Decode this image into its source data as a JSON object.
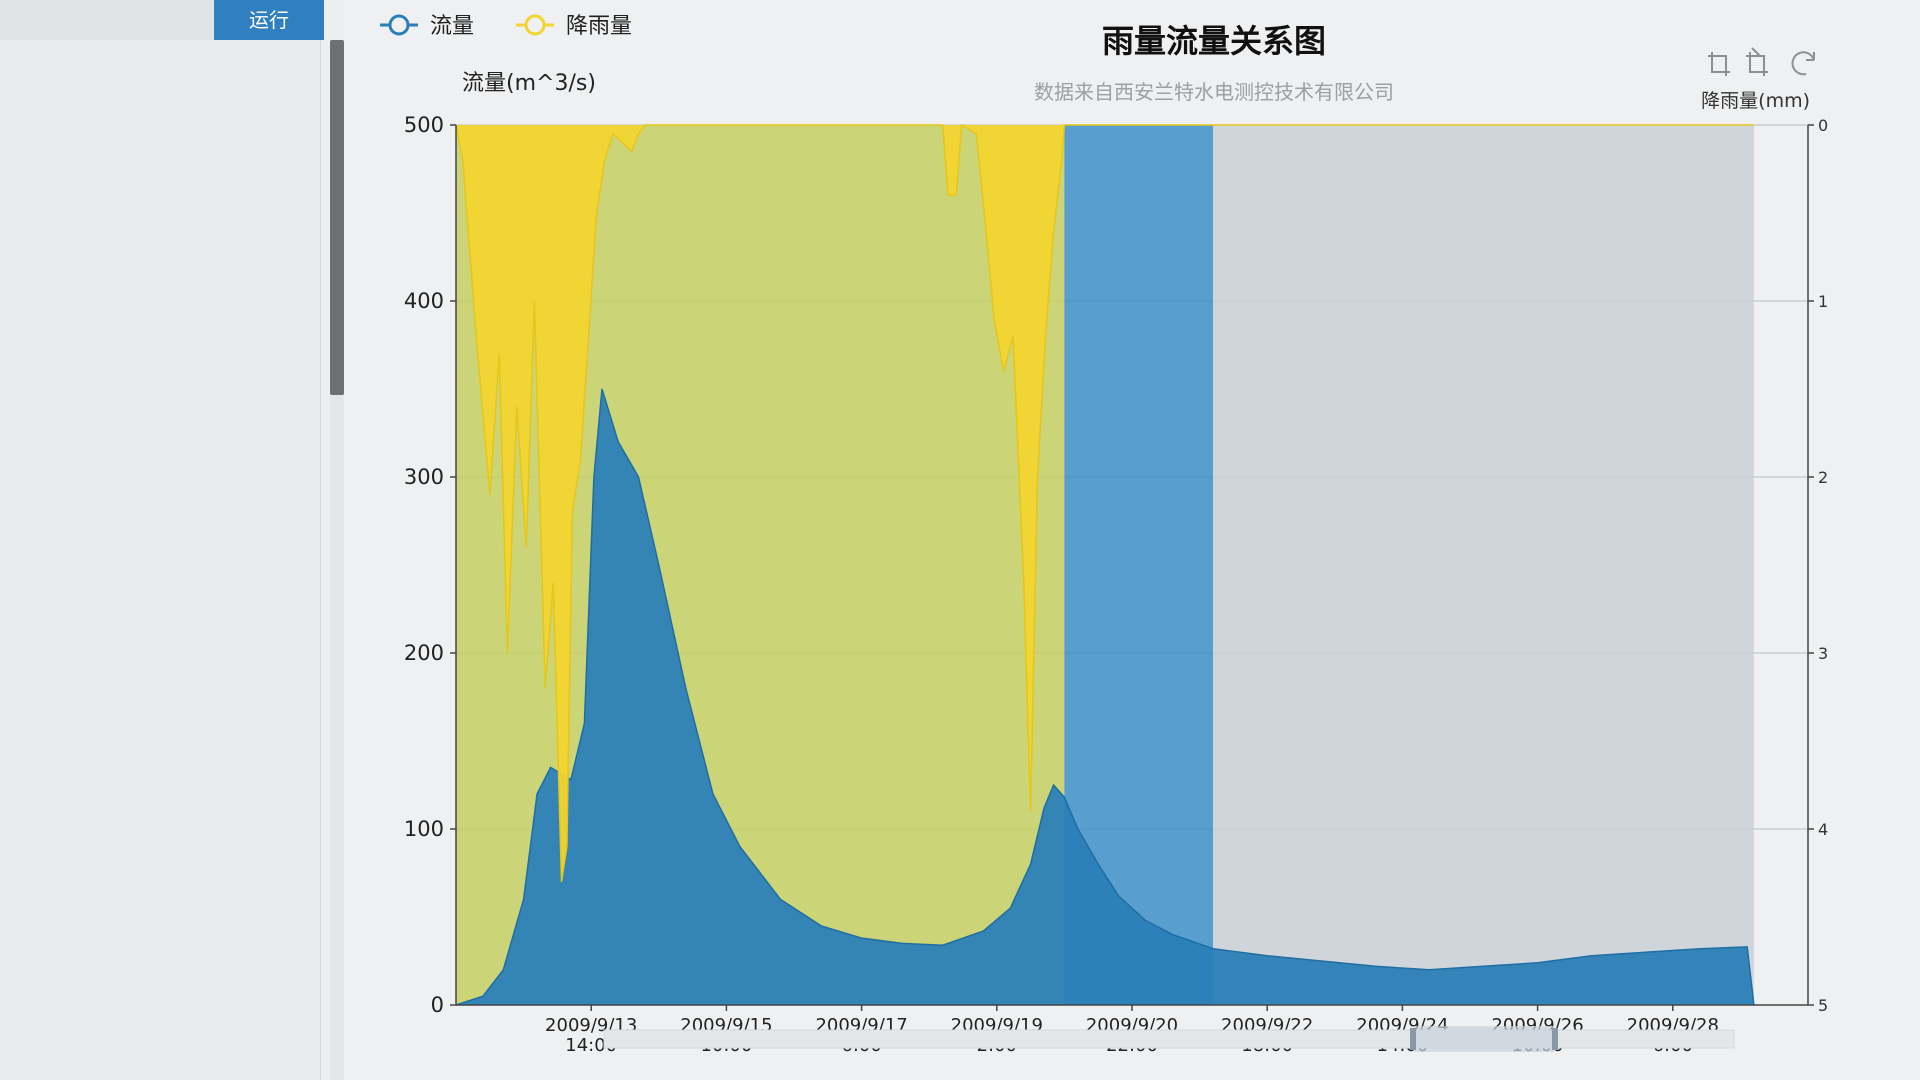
{
  "sidebar": {
    "run_button_label": "运行"
  },
  "toolbar": {
    "icons": [
      "zoom-icon",
      "zoom-reset-icon",
      "restore-icon"
    ]
  },
  "colors": {
    "flow": "#2b7fb8",
    "rain": "#f2d530",
    "mark_yellow": "#c4cf60",
    "mark_blue": "#3d8fc8",
    "mark_grey": "#c9d0d6"
  },
  "chart_data": {
    "type": "area",
    "title": "雨量流量关系图",
    "subtitle": "数据来自西安兰特水电测控技术有限公司",
    "legend": [
      {
        "label": "流量",
        "color": "#2b7fb8"
      },
      {
        "label": "降雨量",
        "color": "#f2d530"
      }
    ],
    "legend_position": "top-left",
    "y_left": {
      "label": "流量(m^3/s)",
      "ticks": [
        0,
        100,
        200,
        300,
        400,
        500
      ],
      "range": [
        0,
        500
      ]
    },
    "y_right": {
      "label": "降雨量(mm)",
      "ticks": [
        0,
        1,
        2,
        3,
        4,
        5
      ],
      "range": [
        0,
        5
      ],
      "inverse": true
    },
    "x_ticks": [
      {
        "date": "2009/9/13",
        "time": "14:00"
      },
      {
        "date": "2009/9/15",
        "time": "10:00"
      },
      {
        "date": "2009/9/17",
        "time": "6:00"
      },
      {
        "date": "2009/9/19",
        "time": "2:00"
      },
      {
        "date": "2009/9/20",
        "time": "22:00"
      },
      {
        "date": "2009/9/22",
        "time": "18:00"
      },
      {
        "date": "2009/9/24",
        "time": "14:00"
      },
      {
        "date": "2009/9/26",
        "time": "10:00"
      },
      {
        "date": "2009/9/28",
        "time": "6:00"
      }
    ],
    "x_range": [
      0,
      10
    ],
    "grid": true,
    "series": [
      {
        "name": "流量",
        "axis": "left",
        "points": [
          [
            0,
            0
          ],
          [
            0.2,
            5
          ],
          [
            0.35,
            20
          ],
          [
            0.5,
            60
          ],
          [
            0.6,
            120
          ],
          [
            0.7,
            135
          ],
          [
            0.85,
            128
          ],
          [
            0.95,
            160
          ],
          [
            1.02,
            300
          ],
          [
            1.08,
            350
          ],
          [
            1.12,
            340
          ],
          [
            1.2,
            320
          ],
          [
            1.35,
            300
          ],
          [
            1.5,
            250
          ],
          [
            1.7,
            180
          ],
          [
            1.9,
            120
          ],
          [
            2.1,
            90
          ],
          [
            2.4,
            60
          ],
          [
            2.7,
            45
          ],
          [
            3.0,
            38
          ],
          [
            3.3,
            35
          ],
          [
            3.6,
            34
          ],
          [
            3.9,
            42
          ],
          [
            4.1,
            55
          ],
          [
            4.25,
            80
          ],
          [
            4.35,
            112
          ],
          [
            4.42,
            125
          ],
          [
            4.5,
            118
          ],
          [
            4.6,
            100
          ],
          [
            4.75,
            80
          ],
          [
            4.9,
            62
          ],
          [
            5.1,
            48
          ],
          [
            5.3,
            40
          ],
          [
            5.6,
            32
          ],
          [
            6.0,
            28
          ],
          [
            6.4,
            25
          ],
          [
            6.8,
            22
          ],
          [
            7.2,
            20
          ],
          [
            7.6,
            22
          ],
          [
            8.0,
            24
          ],
          [
            8.4,
            28
          ],
          [
            8.8,
            30
          ],
          [
            9.2,
            32
          ],
          [
            9.55,
            33
          ],
          [
            9.6,
            0
          ]
        ]
      },
      {
        "name": "降雨量",
        "axis": "right",
        "points": [
          [
            0,
            0
          ],
          [
            0.05,
            0.2
          ],
          [
            0.15,
            1.2
          ],
          [
            0.25,
            2.1
          ],
          [
            0.32,
            1.3
          ],
          [
            0.38,
            3.0
          ],
          [
            0.45,
            1.6
          ],
          [
            0.52,
            2.4
          ],
          [
            0.58,
            1.0
          ],
          [
            0.66,
            3.2
          ],
          [
            0.72,
            2.6
          ],
          [
            0.78,
            4.3
          ],
          [
            0.82,
            4.1
          ],
          [
            0.86,
            2.2
          ],
          [
            0.92,
            1.9
          ],
          [
            0.98,
            1.2
          ],
          [
            1.04,
            0.5
          ],
          [
            1.1,
            0.2
          ],
          [
            1.16,
            0.05
          ],
          [
            1.3,
            0.15
          ],
          [
            1.35,
            0.05
          ],
          [
            1.4,
            0
          ],
          [
            3.6,
            0
          ],
          [
            3.64,
            0.4
          ],
          [
            3.7,
            0.4
          ],
          [
            3.74,
            0
          ],
          [
            3.85,
            0.05
          ],
          [
            3.92,
            0.6
          ],
          [
            3.98,
            1.1
          ],
          [
            4.05,
            1.4
          ],
          [
            4.12,
            1.2
          ],
          [
            4.2,
            2.6
          ],
          [
            4.25,
            3.9
          ],
          [
            4.3,
            2.0
          ],
          [
            4.36,
            1.2
          ],
          [
            4.42,
            0.6
          ],
          [
            4.48,
            0.2
          ],
          [
            4.5,
            0
          ],
          [
            9.6,
            0
          ]
        ]
      }
    ],
    "mark_areas": [
      {
        "from": 0,
        "to": 4.5,
        "color": "#c4cf60"
      },
      {
        "from": 4.5,
        "to": 5.6,
        "color": "#3d8fc8"
      },
      {
        "from": 5.6,
        "to": 9.6,
        "color": "#c9d0d6"
      }
    ]
  }
}
